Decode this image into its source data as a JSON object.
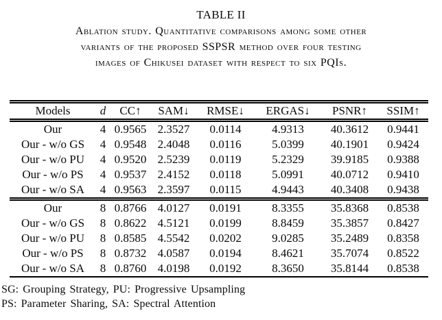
{
  "page": {
    "background_color": "#ffffff",
    "text_color": "#0a0a0a"
  },
  "title": "TABLE II",
  "caption": {
    "lines": [
      "Ablation study. Quantitative comparisons among some other",
      "variants of the proposed SSPSR method over four testing",
      "images of Chikusei dataset with respect to six PQIs."
    ]
  },
  "table": {
    "headers": [
      "Models",
      "d",
      "CC↑",
      "SAM↓",
      "RMSE↓",
      "ERGAS↓",
      "PSNR↑",
      "SSIM↑"
    ],
    "blocks": [
      {
        "scale": "4",
        "rows": [
          [
            "Our",
            "4",
            "0.9565",
            "2.3527",
            "0.0114",
            "4.9313",
            "40.3612",
            "0.9441"
          ],
          [
            "Our - w/o GS",
            "4",
            "0.9548",
            "2.4048",
            "0.0116",
            "5.0399",
            "40.1901",
            "0.9424"
          ],
          [
            "Our - w/o PU",
            "4",
            "0.9520",
            "2.5239",
            "0.0119",
            "5.2329",
            "39.9185",
            "0.9388"
          ],
          [
            "Our - w/o PS",
            "4",
            "0.9537",
            "2.4152",
            "0.0118",
            "5.0991",
            "40.0712",
            "0.9410"
          ],
          [
            "Our - w/o SA",
            "4",
            "0.9563",
            "2.3597",
            "0.0115",
            "4.9443",
            "40.3408",
            "0.9438"
          ]
        ]
      },
      {
        "scale": "8",
        "rows": [
          [
            "Our",
            "8",
            "0.8766",
            "4.0127",
            "0.0191",
            "8.3355",
            "35.8368",
            "0.8538"
          ],
          [
            "Our - w/o GS",
            "8",
            "0.8622",
            "4.5121",
            "0.0199",
            "8.8459",
            "35.3857",
            "0.8427"
          ],
          [
            "Our - w/o PU",
            "8",
            "0.8585",
            "4.5542",
            "0.0202",
            "9.0285",
            "35.2489",
            "0.8358"
          ],
          [
            "Our - w/o PS",
            "8",
            "0.8732",
            "4.0587",
            "0.0194",
            "8.4621",
            "35.7074",
            "0.8522"
          ],
          [
            "Our - w/o SA",
            "8",
            "0.8760",
            "4.0198",
            "0.0192",
            "8.3650",
            "35.8144",
            "0.8538"
          ]
        ]
      }
    ]
  },
  "footnotes": {
    "lines": [
      "SG: Grouping Strategy, PU: Progressive Upsampling",
      "PS: Parameter Sharing, SA: Spectral Attention"
    ]
  }
}
